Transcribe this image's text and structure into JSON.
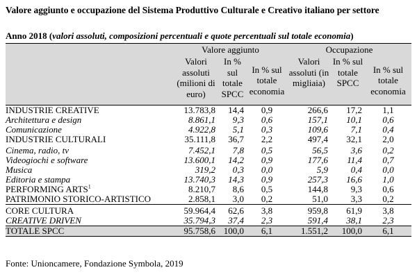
{
  "title": "Valore aggiunto e occupazione del Sistema Produttivo Culturale e Creativo italiano per settore",
  "subtitle": {
    "lead": "Anno 2018 (",
    "italic": "valori assoluti, composizioni percentuali e quote percentuali sul totale economia",
    "tail": ")"
  },
  "header": {
    "group1": "Valore aggiunto",
    "group2": "Occupazione",
    "cols": [
      "Valori assoluti (milioni di euro)",
      "In % sul totale SPCC",
      "In % sul totale economia",
      "Valori assoluti (in migliaia)",
      "In % sul totale SPCC",
      "In % sul totale economia"
    ]
  },
  "rows": [
    {
      "label": "INDUSTRIE CREATIVE",
      "italic": false,
      "values": [
        "13.783,8",
        "14,4",
        "0,9",
        "266,6",
        "17,2",
        "1,1"
      ]
    },
    {
      "label": "Architettura e design",
      "italic": true,
      "values": [
        "8.861,1",
        "9,3",
        "0,6",
        "157,1",
        "10,1",
        "0,6"
      ]
    },
    {
      "label": "Comunicazione",
      "italic": true,
      "values": [
        "4.922,8",
        "5,1",
        "0,3",
        "109,6",
        "7,1",
        "0,4"
      ]
    },
    {
      "label": "INDUSTRIE CULTURALI",
      "italic": false,
      "values": [
        "35.111,8",
        "36,7",
        "2,2",
        "497,4",
        "32,1",
        "2,0"
      ]
    },
    {
      "label": "Cinema, radio, tv",
      "italic": true,
      "values": [
        "7.452,1",
        "7,8",
        "0,5",
        "56,5",
        "3,6",
        "0,2"
      ]
    },
    {
      "label": "Videogiochi e software",
      "italic": true,
      "values": [
        "13.600,1",
        "14,2",
        "0,9",
        "177,6",
        "11,4",
        "0,7"
      ]
    },
    {
      "label": "Musica",
      "italic": true,
      "values": [
        "319,2",
        "0,3",
        "0,0",
        "5,9",
        "0,4",
        "0,0"
      ]
    },
    {
      "label": "Editoria e stampa",
      "italic": true,
      "values": [
        "13.740,3",
        "14,3",
        "0,9",
        "257,3",
        "16,6",
        "1,0"
      ]
    },
    {
      "label": "PERFORMING ARTS",
      "sup": "1",
      "italic": false,
      "values": [
        "8.210,7",
        "8,6",
        "0,5",
        "144,8",
        "9,3",
        "0,6"
      ]
    },
    {
      "label": "PATRIMONIO STORICO-ARTISTICO",
      "italic": false,
      "values": [
        "2.858,1",
        "3,0",
        "0,2",
        "51,0",
        "3,3",
        "0,2"
      ]
    },
    {
      "label": "CORE CULTURA",
      "italic": false,
      "values": [
        "59.964,4",
        "62,6",
        "3,8",
        "959,8",
        "61,9",
        "3,8"
      ]
    },
    {
      "label": "CREATIVE DRIVEN",
      "italic": true,
      "values": [
        "35.794,3",
        "37,4",
        "2,3",
        "591,4",
        "38,1",
        "2,3"
      ]
    },
    {
      "label": "TOTALE SPCC",
      "italic": false,
      "values": [
        "95.758,6",
        "100,0",
        "6,1",
        "1.551,2",
        "100,0",
        "6,1"
      ]
    }
  ],
  "footer": "Fonte: Unioncamere, Fondazione Symbola, 2019",
  "colors": {
    "header_bg": "#d9d9d9",
    "total_bg": "#d9d9d9"
  }
}
